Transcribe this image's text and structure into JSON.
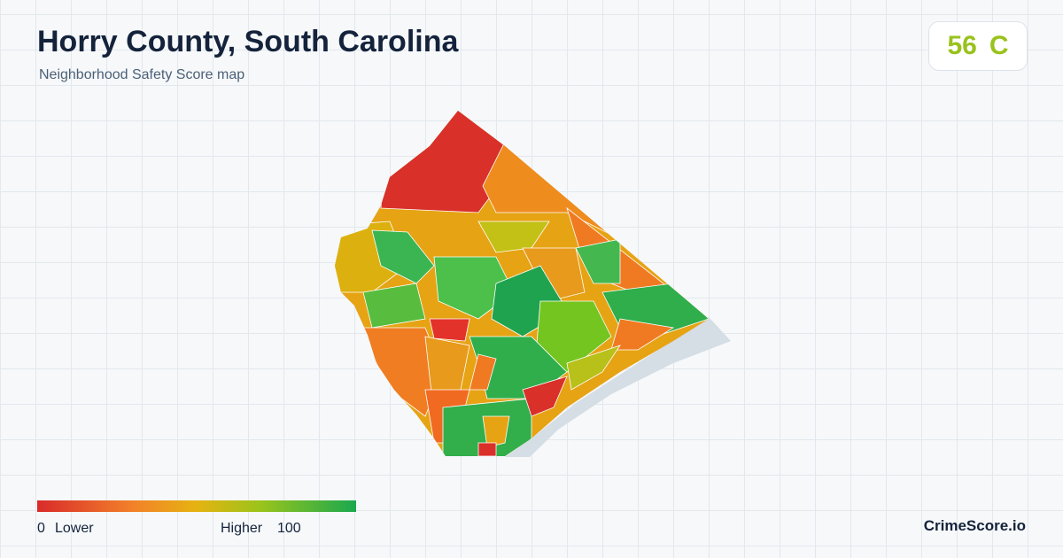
{
  "header": {
    "title": "Horry County, South Carolina",
    "subtitle": "Neighborhood Safety Score map"
  },
  "score": {
    "value": 56,
    "grade": "C"
  },
  "legend": {
    "min": 0,
    "min_label": "Lower",
    "max_label": "Higher",
    "max": 100
  },
  "brand": "CrimeScore.io"
}
